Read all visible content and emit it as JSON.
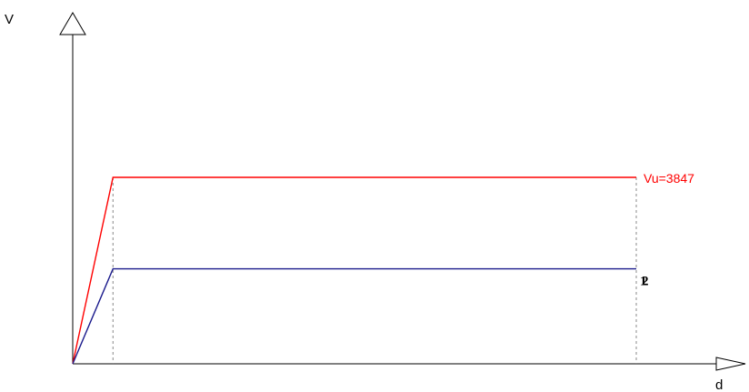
{
  "chart_data": {
    "type": "line",
    "ylabel": "V",
    "xlabel": "d",
    "grid": false,
    "colors": {
      "upper": "#ff0000",
      "lower": "#1a1a8c",
      "axis": "#000000",
      "guide": "#888888"
    },
    "series": [
      {
        "label": "Vu=3847",
        "points": [
          [
            0,
            0
          ],
          [
            1,
            3847
          ],
          [
            14,
            3847
          ]
        ]
      },
      {
        "label": "1",
        "points": [
          [
            0,
            0
          ],
          [
            1,
            1960
          ],
          [
            14,
            1960
          ]
        ]
      }
    ],
    "overlap_label": "2"
  }
}
